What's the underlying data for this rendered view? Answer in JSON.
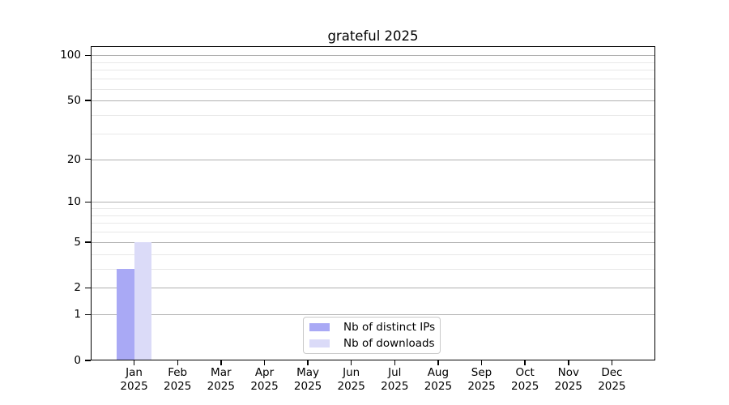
{
  "window": {
    "background": "#ffffff"
  },
  "chart_data": {
    "type": "bar",
    "title": "grateful 2025",
    "categories": [
      "Jan",
      "Feb",
      "Mar",
      "Apr",
      "May",
      "Jun",
      "Jul",
      "Aug",
      "Sep",
      "Oct",
      "Nov",
      "Dec"
    ],
    "x_year_label": "2025",
    "series": [
      {
        "name": "Nb of distinct IPs",
        "color": "#a9a9f5",
        "values": [
          3,
          0,
          0,
          0,
          0,
          0,
          0,
          0,
          0,
          0,
          0,
          0
        ]
      },
      {
        "name": "Nb of downloads",
        "color": "#dbdbf8",
        "values": [
          5,
          0,
          0,
          0,
          0,
          0,
          0,
          0,
          0,
          0,
          0,
          0
        ]
      }
    ],
    "xlabel": "",
    "ylabel": "",
    "yscale": "log1p",
    "ylim": [
      0,
      115
    ],
    "yticks": [
      0,
      1,
      2,
      5,
      10,
      20,
      50,
      100
    ],
    "minor_yticks": [
      3,
      4,
      6,
      7,
      8,
      9,
      30,
      40,
      60,
      70,
      80,
      90
    ],
    "grid": "horizontal",
    "legend_position": "lower center",
    "colors": {
      "major_grid": "#b0b0b0",
      "minor_grid": "#e8e8e8",
      "spine": "#000000",
      "text": "#000000"
    }
  }
}
